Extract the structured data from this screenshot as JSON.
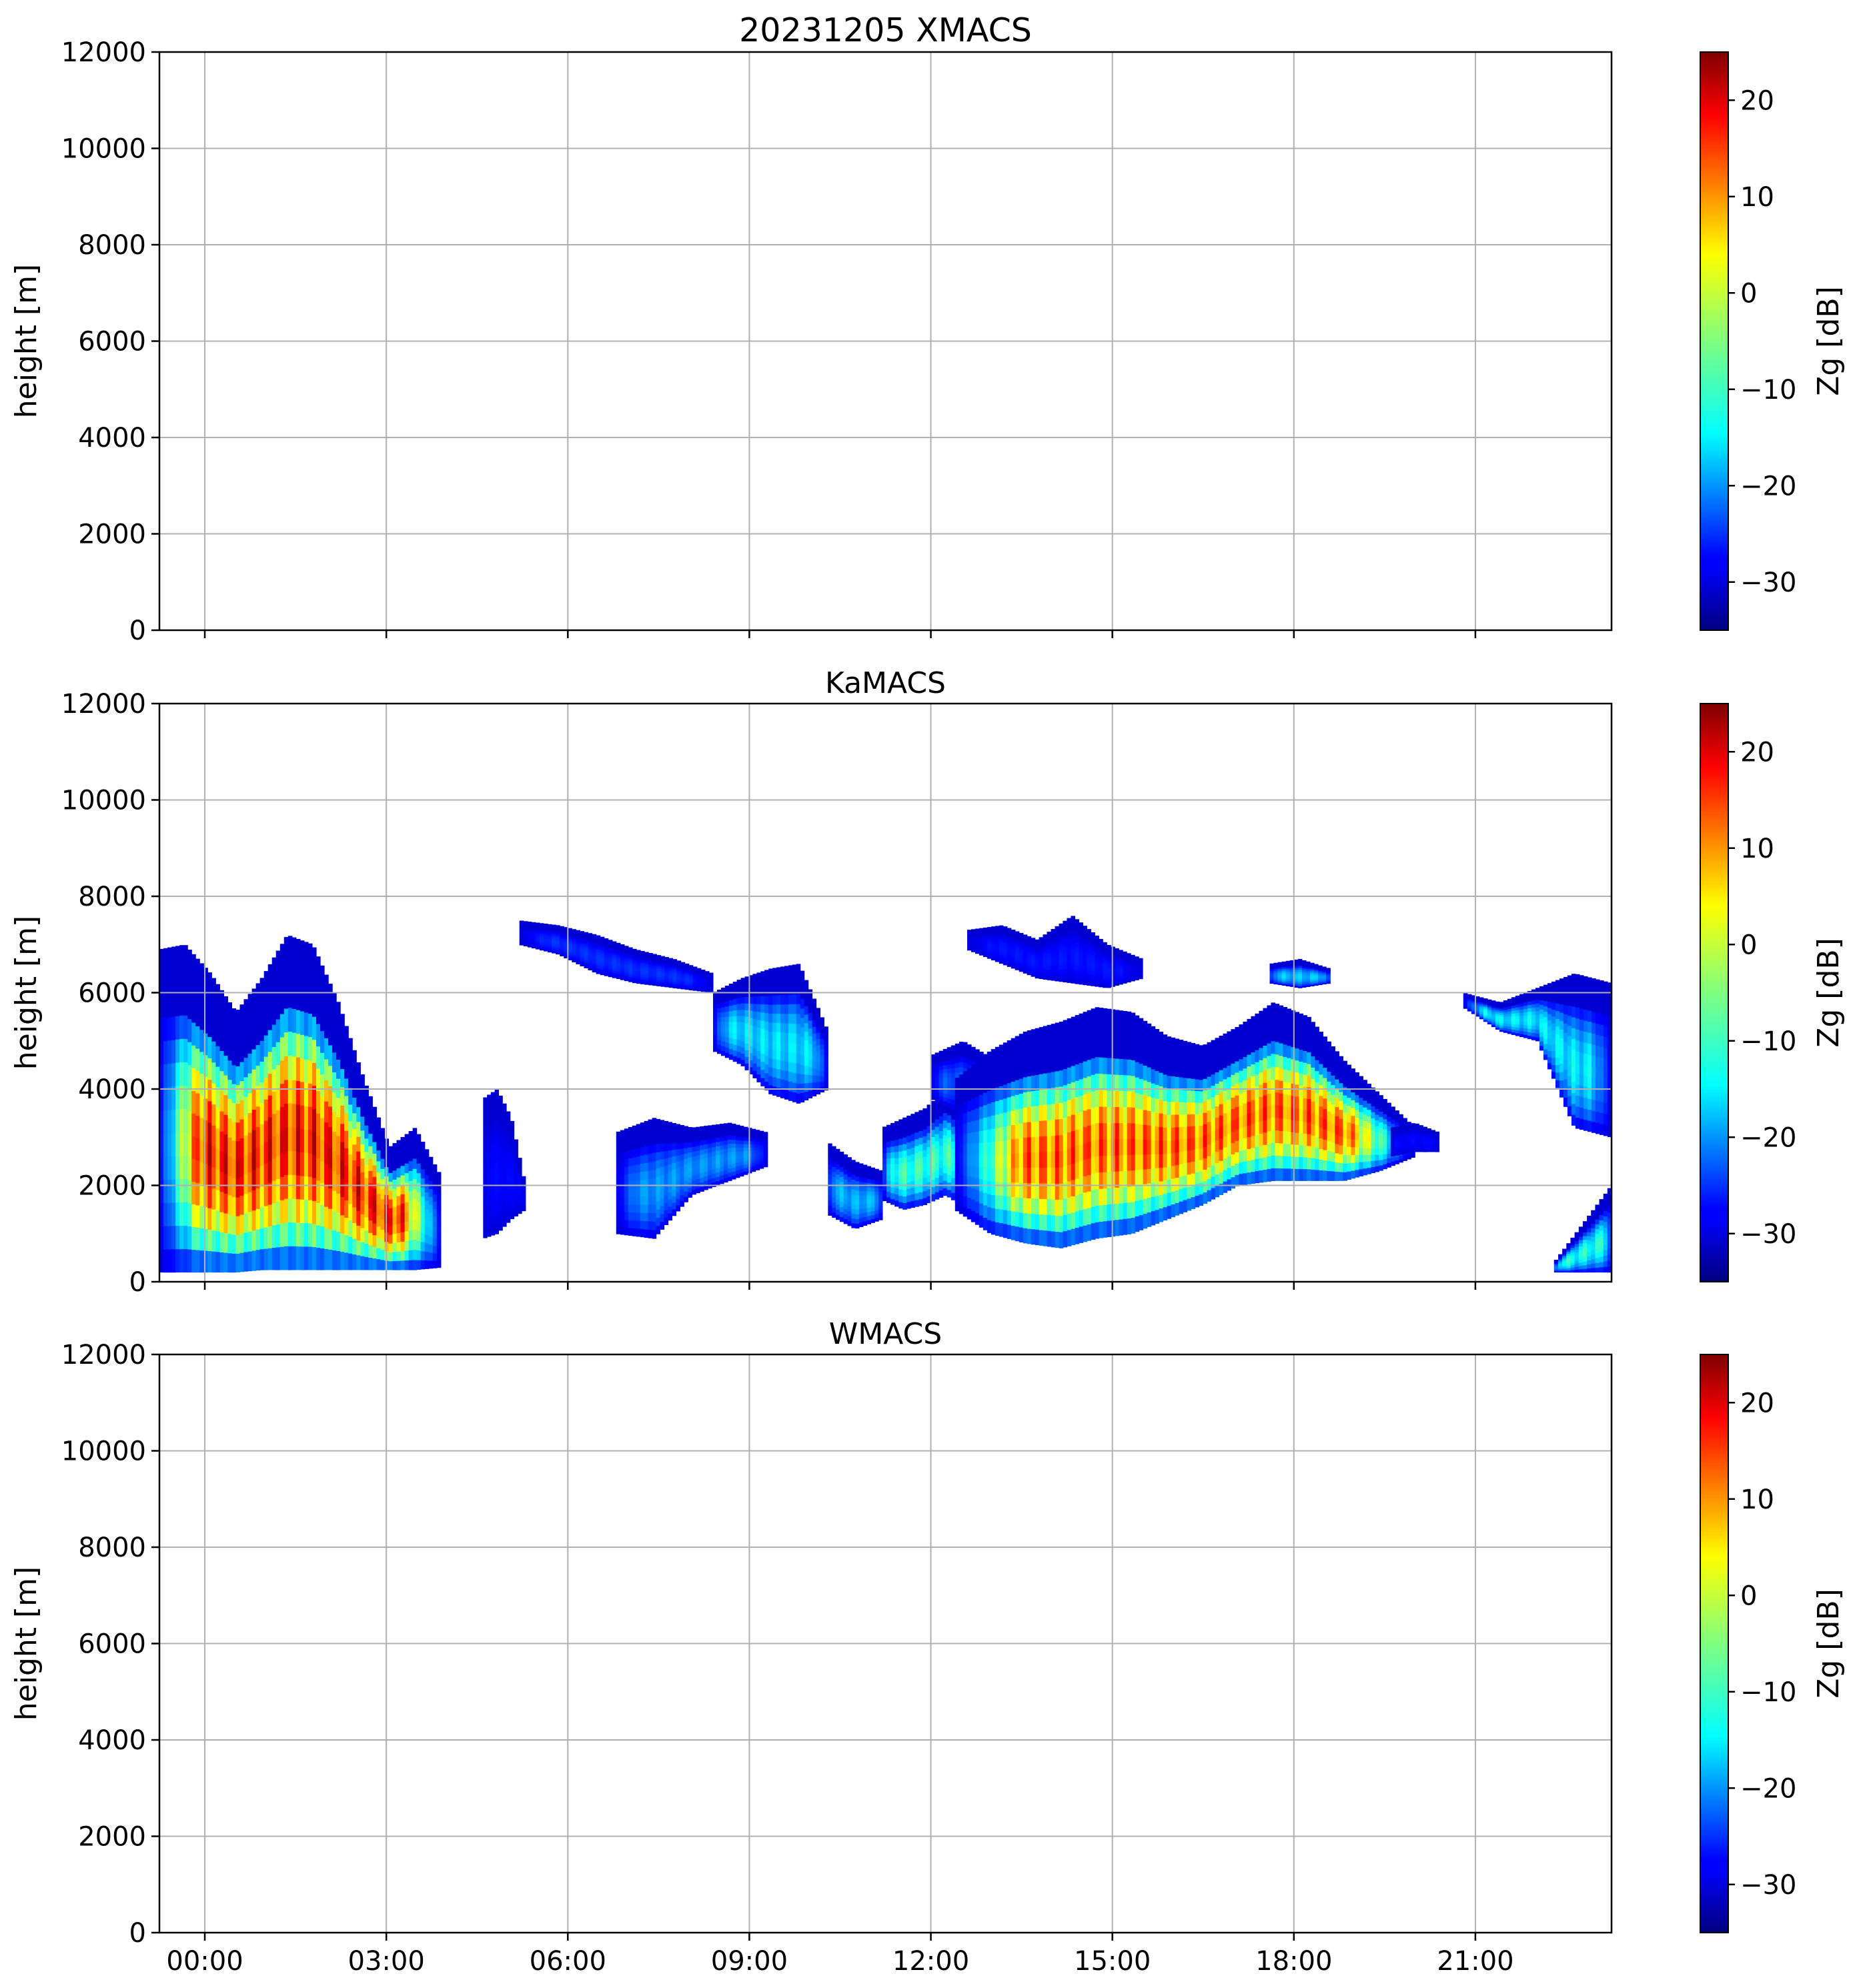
{
  "chart_data": [
    {
      "type": "heatmap",
      "title": "20231205 XMACS",
      "ylabel": "height [m]",
      "ylim": [
        0,
        12000
      ],
      "yticks": [
        "0",
        "2000",
        "4000",
        "6000",
        "8000",
        "10000",
        "12000"
      ],
      "x_range_hours": [
        -0.75,
        23.25
      ],
      "xtick_hours": [
        0,
        3,
        6,
        9,
        12,
        15,
        18,
        21
      ],
      "xticks": [
        "00:00",
        "03:00",
        "06:00",
        "09:00",
        "12:00",
        "15:00",
        "18:00",
        "21:00"
      ],
      "show_xtick_labels": false,
      "grid": true,
      "colorbar": {
        "label": "Zg [dB]",
        "range": [
          -35,
          25
        ],
        "ticks": [
          "−30",
          "−20",
          "−10",
          "0",
          "10",
          "20"
        ],
        "colormap": "jet"
      },
      "echoes": []
    },
    {
      "type": "heatmap",
      "title": "KaMACS",
      "ylabel": "height [m]",
      "ylim": [
        0,
        12000
      ],
      "yticks": [
        "0",
        "2000",
        "4000",
        "6000",
        "8000",
        "10000",
        "12000"
      ],
      "x_range_hours": [
        -0.75,
        23.25
      ],
      "xtick_hours": [
        0,
        3,
        6,
        9,
        12,
        15,
        18,
        21
      ],
      "xticks": [
        "00:00",
        "03:00",
        "06:00",
        "09:00",
        "12:00",
        "15:00",
        "18:00",
        "21:00"
      ],
      "show_xtick_labels": false,
      "grid": true,
      "colorbar": {
        "label": "Zg [dB]",
        "range": [
          -35,
          25
        ],
        "ticks": [
          "−30",
          "−20",
          "−10",
          "0",
          "10",
          "20"
        ],
        "colormap": "jet"
      },
      "echoes": [
        {
          "t": [
            -0.75,
            3.9
          ],
          "top": [
            6900,
            7000,
            6400,
            5600,
            6300,
            7200,
            7000,
            5800,
            4200,
            2800,
            3200,
            2200
          ],
          "base": [
            200,
            200,
            200,
            200,
            250,
            250,
            250,
            250,
            250,
            250,
            250,
            300
          ],
          "peak": 23
        },
        {
          "t": [
            4.6,
            5.3
          ],
          "top": [
            3800,
            4000,
            3400,
            2000
          ],
          "base": [
            900,
            1000,
            1300,
            1500
          ],
          "peak": -27
        },
        {
          "t": [
            5.2,
            8.4
          ],
          "top": [
            7500,
            7400,
            7200,
            6900,
            6700,
            6400
          ],
          "base": [
            7000,
            6800,
            6400,
            6200,
            6100,
            6000
          ],
          "peak": -24
        },
        {
          "t": [
            6.8,
            9.3
          ],
          "top": [
            3100,
            3400,
            3200,
            3300,
            3100
          ],
          "base": [
            1000,
            900,
            1800,
            2100,
            2400
          ],
          "peak": -17
        },
        {
          "t": [
            8.4,
            10.3
          ],
          "top": [
            6000,
            6300,
            6500,
            6600,
            5200
          ],
          "base": [
            4800,
            4500,
            3900,
            3700,
            4000
          ],
          "peak": -12
        },
        {
          "t": [
            10.3,
            11.2
          ],
          "top": [
            2900,
            2500,
            2300
          ],
          "base": [
            1400,
            1100,
            1300
          ],
          "peak": -15
        },
        {
          "t": [
            11.2,
            12.6
          ],
          "top": [
            3200,
            3400,
            3600,
            4000,
            3500
          ],
          "base": [
            1700,
            1500,
            1600,
            1800,
            1500
          ],
          "peak": -6
        },
        {
          "t": [
            12.0,
            13.6
          ],
          "top": [
            4700,
            5000,
            4600,
            4500
          ],
          "base": [
            3800,
            3500,
            3400,
            3000
          ],
          "peak": -21
        },
        {
          "t": [
            12.6,
            15.5
          ],
          "top": [
            7300,
            7400,
            7100,
            7600,
            7000,
            6700
          ],
          "base": [
            6900,
            6600,
            6300,
            6200,
            6100,
            6300
          ],
          "peak": -26
        },
        {
          "t": [
            12.4,
            20.0
          ],
          "top": [
            4200,
            4800,
            5200,
            5400,
            5700,
            5600,
            5100,
            4900,
            5300,
            5800,
            5500,
            4600,
            3900,
            3200
          ],
          "base": [
            1500,
            1000,
            800,
            700,
            900,
            1000,
            1300,
            1600,
            2000,
            2100,
            2100,
            2100,
            2300,
            2600
          ],
          "peak": 18
        },
        {
          "t": [
            19.6,
            20.4
          ],
          "top": [
            3200,
            3300,
            3100
          ],
          "base": [
            2600,
            2700,
            2700
          ],
          "peak": -27
        },
        {
          "t": [
            17.6,
            18.6
          ],
          "top": [
            6600,
            6700,
            6500
          ],
          "base": [
            6200,
            6100,
            6200
          ],
          "peak": -14
        },
        {
          "t": [
            20.8,
            23.25
          ],
          "top": [
            6000,
            5800,
            6100,
            6400,
            6200
          ],
          "base": [
            5700,
            5200,
            5000,
            3200,
            3000
          ],
          "peak": -11
        },
        {
          "t": [
            22.3,
            23.25
          ],
          "top": [
            400,
            1200,
            2000
          ],
          "base": [
            200,
            200,
            200
          ],
          "peak": -8
        }
      ]
    },
    {
      "type": "heatmap",
      "title": "WMACS",
      "ylabel": "height [m]",
      "ylim": [
        0,
        12000
      ],
      "yticks": [
        "0",
        "2000",
        "4000",
        "6000",
        "8000",
        "10000",
        "12000"
      ],
      "x_range_hours": [
        -0.75,
        23.25
      ],
      "xtick_hours": [
        0,
        3,
        6,
        9,
        12,
        15,
        18,
        21
      ],
      "xticks": [
        "00:00",
        "03:00",
        "06:00",
        "09:00",
        "12:00",
        "15:00",
        "18:00",
        "21:00"
      ],
      "show_xtick_labels": true,
      "grid": true,
      "colorbar": {
        "label": "Zg [dB]",
        "range": [
          -35,
          25
        ],
        "ticks": [
          "−30",
          "−20",
          "−10",
          "0",
          "10",
          "20"
        ],
        "colormap": "jet"
      },
      "echoes": []
    }
  ]
}
